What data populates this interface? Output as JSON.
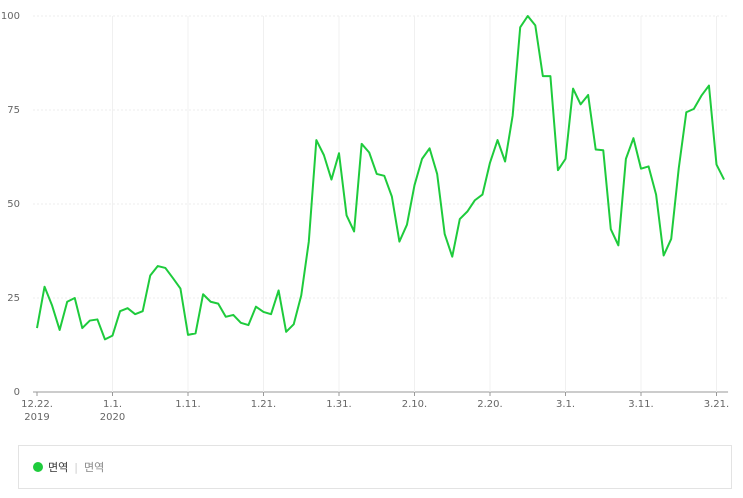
{
  "chart_data": {
    "type": "line",
    "categories": [
      "12.22.",
      null,
      null,
      null,
      null,
      null,
      null,
      null,
      null,
      null,
      "1.1.",
      null,
      null,
      null,
      null,
      null,
      null,
      null,
      null,
      null,
      "1.11.",
      null,
      null,
      null,
      null,
      null,
      null,
      null,
      null,
      null,
      "1.21.",
      null,
      null,
      null,
      null,
      null,
      null,
      null,
      null,
      null,
      "1.31.",
      null,
      null,
      null,
      null,
      null,
      null,
      null,
      null,
      null,
      "2.10.",
      null,
      null,
      null,
      null,
      null,
      null,
      null,
      null,
      null,
      "2.20.",
      null,
      null,
      null,
      null,
      null,
      null,
      null,
      null,
      null,
      "3.1.",
      null,
      null,
      null,
      null,
      null,
      null,
      null,
      null,
      null,
      "3.11.",
      null,
      null,
      null,
      null,
      null,
      null,
      null,
      null,
      null,
      "3.21.",
      null
    ],
    "category_years": [
      "2019",
      null,
      null,
      null,
      null,
      null,
      null,
      null,
      null,
      null,
      "2020",
      null,
      null,
      null,
      null,
      null,
      null,
      null,
      null,
      null,
      null,
      null,
      null,
      null,
      null,
      null,
      null,
      null,
      null,
      null,
      null,
      null,
      null,
      null,
      null,
      null,
      null,
      null,
      null,
      null,
      null,
      null,
      null,
      null,
      null,
      null,
      null,
      null,
      null,
      null,
      null,
      null,
      null,
      null,
      null,
      null,
      null,
      null,
      null,
      null,
      null,
      null,
      null,
      null,
      null,
      null,
      null,
      null,
      null,
      null,
      null,
      null,
      null,
      null,
      null,
      null,
      null,
      null,
      null,
      null,
      null,
      null,
      null,
      null,
      null,
      null,
      null,
      null,
      null,
      null,
      null,
      null
    ],
    "series": [
      {
        "name": "면역",
        "keyword": "면역",
        "color": "#1ecb3c",
        "values": [
          17,
          28,
          23,
          16.5,
          24,
          25,
          17,
          19,
          19.3,
          14,
          15,
          21.5,
          22.3,
          20.7,
          21.5,
          31,
          33.5,
          33,
          30.3,
          27.5,
          15.2,
          15.6,
          26,
          24,
          23.5,
          20,
          20.5,
          18.4,
          17.8,
          22.7,
          21.3,
          20.7,
          27,
          16,
          18,
          25.7,
          40,
          67,
          63,
          56.5,
          63.5,
          47,
          42.7,
          66,
          63.7,
          58,
          57.5,
          52,
          40,
          44.5,
          55,
          62,
          64.8,
          58,
          42,
          36,
          46,
          48,
          51,
          52.5,
          61,
          67,
          61.3,
          73.5,
          97,
          100,
          97.5,
          84,
          84,
          59,
          62,
          80.7,
          76.5,
          79,
          64.5,
          64.3,
          43.3,
          39,
          62,
          67.5,
          59.4,
          60,
          52.5,
          36.3,
          40.7,
          59.5,
          74.4,
          75.3,
          78.8,
          81.5,
          60.5,
          56.5
        ]
      }
    ],
    "ylim": [
      0,
      100
    ],
    "yticks": [
      0,
      25,
      50,
      75,
      100
    ],
    "grid": true
  }
}
